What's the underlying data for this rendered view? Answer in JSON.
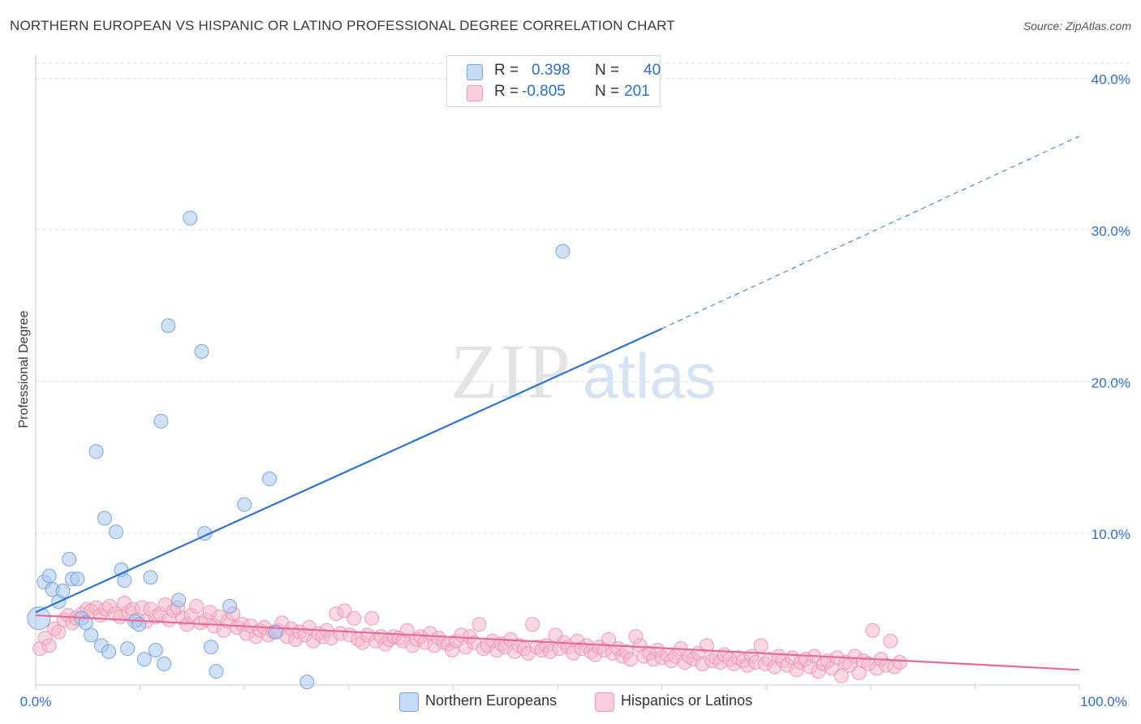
{
  "header": {
    "title": "NORTHERN EUROPEAN VS HISPANIC OR LATINO PROFESSIONAL DEGREE CORRELATION CHART",
    "source": "Source: ZipAtlas.com"
  },
  "watermark": {
    "zip": "ZIP",
    "atlas": "atlas"
  },
  "colors": {
    "blue_fill": "#aac8f0",
    "blue_stroke": "#7aa6de",
    "blue_line": "#2f74d0",
    "pink_fill": "#f6b8cb",
    "pink_stroke": "#ee9bb4",
    "pink_line": "#e8699a",
    "axis_text": "#2f6fc4",
    "grid": "#dcdcdc"
  },
  "legend": {
    "rows": [
      {
        "r_label": "R =",
        "r_value": "0.398",
        "n_label": "N =",
        "n_value": "40"
      },
      {
        "r_label": "R =",
        "r_value": "-0.805",
        "n_label": "N =",
        "n_value": "201"
      }
    ]
  },
  "chart_data": {
    "type": "scatter",
    "title": "NORTHERN EUROPEAN VS HISPANIC OR LATINO PROFESSIONAL DEGREE CORRELATION CHART",
    "xlabel": "",
    "ylabel": "Professional Degree",
    "xlim": [
      0,
      100
    ],
    "ylim": [
      0,
      42.5
    ],
    "x_tick_labels": [
      "0.0%",
      "100.0%"
    ],
    "y_ticks": [
      10,
      20,
      30,
      40
    ],
    "y_tick_labels": [
      "10.0%",
      "20.0%",
      "30.0%",
      "40.0%"
    ],
    "grid": true,
    "legend_position": "top-center",
    "series": [
      {
        "name": "Northern Europeans",
        "r": 0.398,
        "n": 40,
        "trend": {
          "x0": 0,
          "y0": 4.8,
          "x1": 60,
          "y1": 23.5,
          "dashed_to_x": 100,
          "dashed_to_y": 36.2
        },
        "points": [
          [
            0.3,
            4.4
          ],
          [
            0.8,
            6.8
          ],
          [
            1.3,
            7.2
          ],
          [
            1.6,
            6.3
          ],
          [
            2.2,
            5.5
          ],
          [
            2.6,
            6.2
          ],
          [
            3.2,
            8.3
          ],
          [
            3.5,
            7.0
          ],
          [
            4.0,
            7.0
          ],
          [
            4.4,
            4.4
          ],
          [
            4.8,
            4.1
          ],
          [
            5.3,
            3.3
          ],
          [
            5.8,
            15.4
          ],
          [
            6.3,
            2.6
          ],
          [
            6.6,
            11.0
          ],
          [
            7.0,
            2.2
          ],
          [
            7.7,
            10.1
          ],
          [
            8.2,
            7.6
          ],
          [
            8.5,
            6.9
          ],
          [
            8.8,
            2.4
          ],
          [
            9.5,
            4.2
          ],
          [
            9.9,
            4.0
          ],
          [
            10.4,
            1.7
          ],
          [
            11.0,
            7.1
          ],
          [
            11.5,
            2.3
          ],
          [
            12.0,
            17.4
          ],
          [
            12.3,
            1.4
          ],
          [
            12.7,
            23.7
          ],
          [
            13.7,
            5.6
          ],
          [
            14.8,
            30.8
          ],
          [
            15.9,
            22.0
          ],
          [
            16.2,
            10.0
          ],
          [
            16.8,
            2.5
          ],
          [
            17.3,
            0.9
          ],
          [
            18.6,
            5.2
          ],
          [
            20.0,
            11.9
          ],
          [
            22.4,
            13.6
          ],
          [
            23.0,
            3.5
          ],
          [
            26.0,
            0.2
          ],
          [
            50.5,
            28.6
          ]
        ]
      },
      {
        "name": "Hispanics or Latinos",
        "r": -0.805,
        "n": 201,
        "trend": {
          "x0": 0,
          "y0": 4.6,
          "x1": 100,
          "y1": 1.0
        },
        "points": [
          [
            0.4,
            2.4
          ],
          [
            0.9,
            3.1
          ],
          [
            1.3,
            2.6
          ],
          [
            1.8,
            3.7
          ],
          [
            2.2,
            3.5
          ],
          [
            2.7,
            4.3
          ],
          [
            3.1,
            4.6
          ],
          [
            3.5,
            4.1
          ],
          [
            3.9,
            4.4
          ],
          [
            4.4,
            4.7
          ],
          [
            4.9,
            5.0
          ],
          [
            5.3,
            4.9
          ],
          [
            5.8,
            5.1
          ],
          [
            6.2,
            4.6
          ],
          [
            6.7,
            5.0
          ],
          [
            7.1,
            5.2
          ],
          [
            7.6,
            4.7
          ],
          [
            8.1,
            4.5
          ],
          [
            8.5,
            5.4
          ],
          [
            8.9,
            4.8
          ],
          [
            9.3,
            5.0
          ],
          [
            9.7,
            4.3
          ],
          [
            10.2,
            5.1
          ],
          [
            10.6,
            4.2
          ],
          [
            11.0,
            5.0
          ],
          [
            11.5,
            4.5
          ],
          [
            11.9,
            4.7
          ],
          [
            12.4,
            5.3
          ],
          [
            12.8,
            4.3
          ],
          [
            13.2,
            4.9
          ],
          [
            13.6,
            5.1
          ],
          [
            14.1,
            4.4
          ],
          [
            14.5,
            4.0
          ],
          [
            14.9,
            4.6
          ],
          [
            15.4,
            5.2
          ],
          [
            15.8,
            4.1
          ],
          [
            16.3,
            4.3
          ],
          [
            16.7,
            4.8
          ],
          [
            17.1,
            3.9
          ],
          [
            17.6,
            4.5
          ],
          [
            18.0,
            3.6
          ],
          [
            18.4,
            4.2
          ],
          [
            18.9,
            4.7
          ],
          [
            19.3,
            3.8
          ],
          [
            19.8,
            4.0
          ],
          [
            20.2,
            3.4
          ],
          [
            20.6,
            3.9
          ],
          [
            21.1,
            3.2
          ],
          [
            21.5,
            3.6
          ],
          [
            21.9,
            3.8
          ],
          [
            22.3,
            3.3
          ],
          [
            22.8,
            3.5
          ],
          [
            23.2,
            3.6
          ],
          [
            23.6,
            4.1
          ],
          [
            24.1,
            3.2
          ],
          [
            24.5,
            3.7
          ],
          [
            24.9,
            3.0
          ],
          [
            25.3,
            3.5
          ],
          [
            25.8,
            3.3
          ],
          [
            26.2,
            3.8
          ],
          [
            26.6,
            2.9
          ],
          [
            27.1,
            3.4
          ],
          [
            27.5,
            3.2
          ],
          [
            27.9,
            3.6
          ],
          [
            28.3,
            3.1
          ],
          [
            28.8,
            4.7
          ],
          [
            29.2,
            3.4
          ],
          [
            29.6,
            4.9
          ],
          [
            30.1,
            3.3
          ],
          [
            30.5,
            4.4
          ],
          [
            30.9,
            3.0
          ],
          [
            31.3,
            2.8
          ],
          [
            31.8,
            3.3
          ],
          [
            32.2,
            4.4
          ],
          [
            32.6,
            2.9
          ],
          [
            33.1,
            3.2
          ],
          [
            33.5,
            2.7
          ],
          [
            33.9,
            3.0
          ],
          [
            34.3,
            3.2
          ],
          [
            34.8,
            3.1
          ],
          [
            35.2,
            2.9
          ],
          [
            35.6,
            3.6
          ],
          [
            36.1,
            2.6
          ],
          [
            36.5,
            3.0
          ],
          [
            36.9,
            3.2
          ],
          [
            37.3,
            2.8
          ],
          [
            37.8,
            3.4
          ],
          [
            38.2,
            2.6
          ],
          [
            38.6,
            3.1
          ],
          [
            39.1,
            2.8
          ],
          [
            39.5,
            2.7
          ],
          [
            39.9,
            2.3
          ],
          [
            40.3,
            2.9
          ],
          [
            40.8,
            3.3
          ],
          [
            41.2,
            2.5
          ],
          [
            41.6,
            3.2
          ],
          [
            42.0,
            2.8
          ],
          [
            42.5,
            4.0
          ],
          [
            42.9,
            2.4
          ],
          [
            43.3,
            2.6
          ],
          [
            43.8,
            2.9
          ],
          [
            44.2,
            2.3
          ],
          [
            44.6,
            2.7
          ],
          [
            45.0,
            2.5
          ],
          [
            45.5,
            3.0
          ],
          [
            45.9,
            2.2
          ],
          [
            46.3,
            2.6
          ],
          [
            46.8,
            2.4
          ],
          [
            47.2,
            2.1
          ],
          [
            47.6,
            4.0
          ],
          [
            48.0,
            2.5
          ],
          [
            48.5,
            2.3
          ],
          [
            48.9,
            2.6
          ],
          [
            49.3,
            2.2
          ],
          [
            49.8,
            3.3
          ],
          [
            50.2,
            2.4
          ],
          [
            50.6,
            2.8
          ],
          [
            51.0,
            2.5
          ],
          [
            51.5,
            2.1
          ],
          [
            51.9,
            2.9
          ],
          [
            52.3,
            2.4
          ],
          [
            52.8,
            2.6
          ],
          [
            53.2,
            2.2
          ],
          [
            53.6,
            2.0
          ],
          [
            54.0,
            2.5
          ],
          [
            54.5,
            2.3
          ],
          [
            54.9,
            3.0
          ],
          [
            55.3,
            2.1
          ],
          [
            55.8,
            2.4
          ],
          [
            56.2,
            1.9
          ],
          [
            56.6,
            2.2
          ],
          [
            57.0,
            1.7
          ],
          [
            57.5,
            3.2
          ],
          [
            57.9,
            2.6
          ],
          [
            58.3,
            1.9
          ],
          [
            58.8,
            2.1
          ],
          [
            59.2,
            1.7
          ],
          [
            59.6,
            2.3
          ],
          [
            60.0,
            1.8
          ],
          [
            60.5,
            2.0
          ],
          [
            60.9,
            1.6
          ],
          [
            61.3,
            1.9
          ],
          [
            61.8,
            2.4
          ],
          [
            62.2,
            1.5
          ],
          [
            62.6,
            1.9
          ],
          [
            63.0,
            1.7
          ],
          [
            63.5,
            2.1
          ],
          [
            63.9,
            1.4
          ],
          [
            64.3,
            2.6
          ],
          [
            64.8,
            1.6
          ],
          [
            65.2,
            1.8
          ],
          [
            65.6,
            1.5
          ],
          [
            66.0,
            2.0
          ],
          [
            66.5,
            1.7
          ],
          [
            66.9,
            1.4
          ],
          [
            67.3,
            1.8
          ],
          [
            67.8,
            1.6
          ],
          [
            68.2,
            1.3
          ],
          [
            68.6,
            1.9
          ],
          [
            69.0,
            1.5
          ],
          [
            69.5,
            2.6
          ],
          [
            69.9,
            1.4
          ],
          [
            70.3,
            1.7
          ],
          [
            70.8,
            1.2
          ],
          [
            71.2,
            1.9
          ],
          [
            71.6,
            1.6
          ],
          [
            72.0,
            1.3
          ],
          [
            72.5,
            1.8
          ],
          [
            72.9,
            1.0
          ],
          [
            73.3,
            1.5
          ],
          [
            73.8,
            1.7
          ],
          [
            74.2,
            1.2
          ],
          [
            74.6,
            1.9
          ],
          [
            75.0,
            0.9
          ],
          [
            75.5,
            1.4
          ],
          [
            75.9,
            1.6
          ],
          [
            76.3,
            1.1
          ],
          [
            76.8,
            1.8
          ],
          [
            77.2,
            0.6
          ],
          [
            77.6,
            1.5
          ],
          [
            78.0,
            1.3
          ],
          [
            78.5,
            1.9
          ],
          [
            78.9,
            0.8
          ],
          [
            79.3,
            1.6
          ],
          [
            79.8,
            1.4
          ],
          [
            80.2,
            3.6
          ],
          [
            80.6,
            1.1
          ],
          [
            81.0,
            1.7
          ],
          [
            81.5,
            1.3
          ],
          [
            81.9,
            2.9
          ],
          [
            82.3,
            1.2
          ],
          [
            82.8,
            1.5
          ]
        ]
      }
    ]
  },
  "bottom_legend": [
    {
      "label": "Northern Europeans"
    },
    {
      "label": "Hispanics or Latinos"
    }
  ]
}
